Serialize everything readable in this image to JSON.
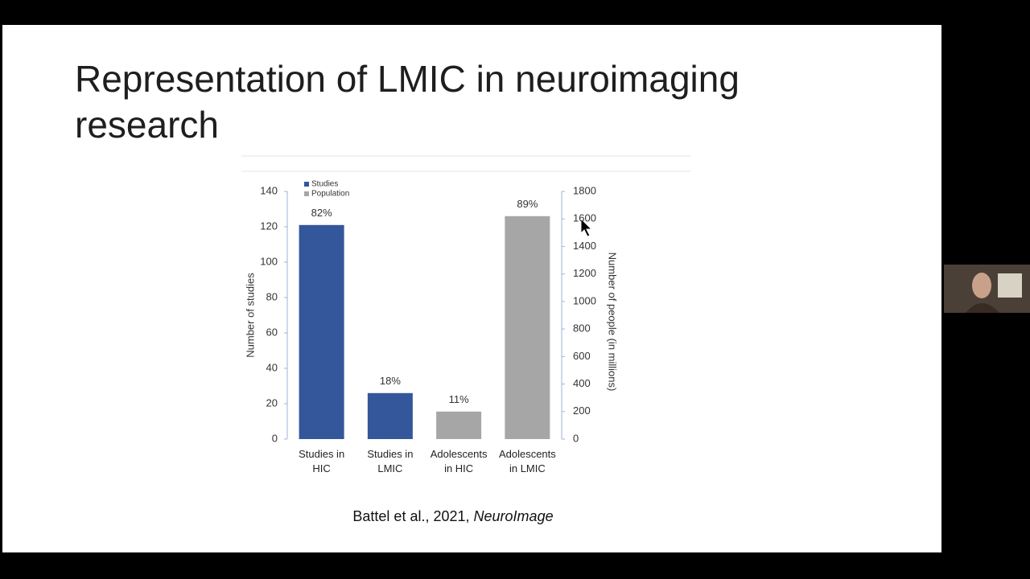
{
  "slide": {
    "title": "Representation of LMIC in neuroimaging research",
    "citation": {
      "text": "Battel et al., 2021,",
      "journal": "NeuroImage"
    }
  },
  "chart_data": {
    "type": "bar",
    "categories": [
      "Studies in HIC",
      "Studies in LMIC",
      "Adolescents in HIC",
      "Adolescents in LMIC"
    ],
    "series": [
      {
        "name": "Studies",
        "color": "#34569b",
        "values": [
          121,
          26,
          null,
          null
        ]
      },
      {
        "name": "Population",
        "color": "#a6a6a6",
        "axis": "y2",
        "values": [
          null,
          null,
          200,
          1620
        ]
      }
    ],
    "bar_annotations": [
      "82%",
      "18%",
      "11%",
      "89%"
    ],
    "y_label": "Number of studies",
    "y2_label": "Number of people (in millions)",
    "ylim": [
      0,
      140
    ],
    "yticks": [
      0,
      20,
      40,
      60,
      80,
      100,
      120,
      140
    ],
    "y2lim": [
      0,
      1800
    ],
    "y2ticks": [
      0,
      200,
      400,
      600,
      800,
      1000,
      1200,
      1400,
      1600,
      1800
    ],
    "legend": "top-left"
  }
}
